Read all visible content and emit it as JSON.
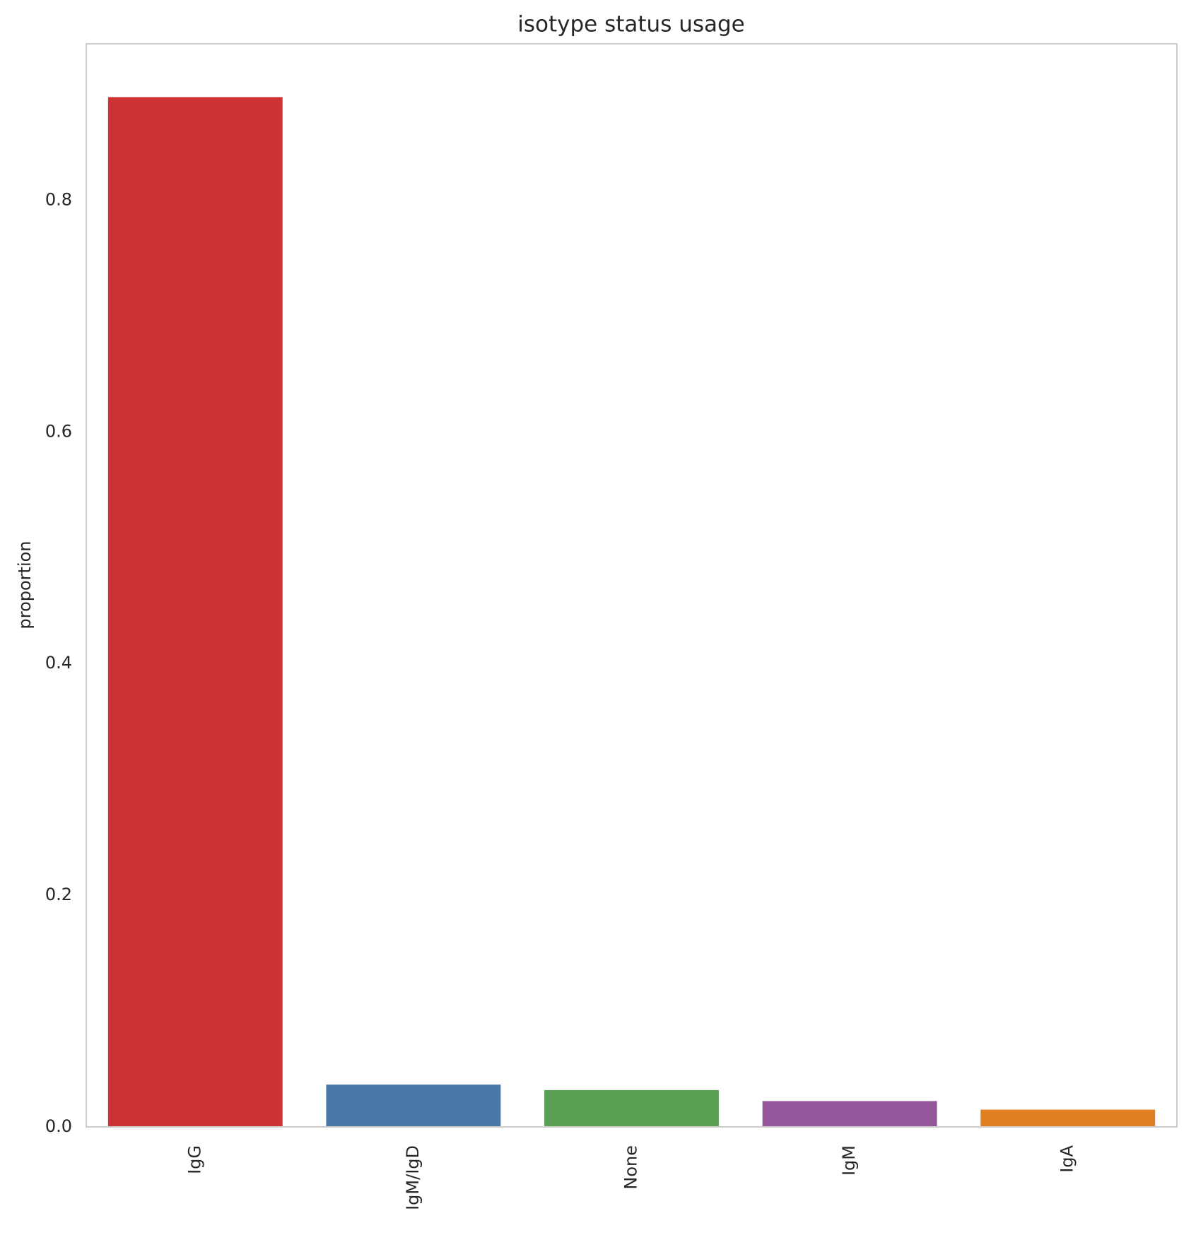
{
  "chart_data": {
    "type": "bar",
    "title": "isotype status usage",
    "y_label": "proportion",
    "categories": [
      "IgG",
      "IgM/IgD",
      "None",
      "IgM",
      "IgA"
    ],
    "values": [
      0.889,
      0.0365,
      0.0318,
      0.0223,
      0.0149
    ],
    "colors": [
      "#cd3235",
      "#4878a6",
      "#5aa156",
      "#94579c",
      "#e17e22"
    ],
    "ylim": [
      0,
      0.935
    ],
    "yticks": [
      {
        "value": 0,
        "label": "0.0"
      },
      0.2,
      0.4,
      0.6,
      0.8
    ],
    "grid": false
  }
}
